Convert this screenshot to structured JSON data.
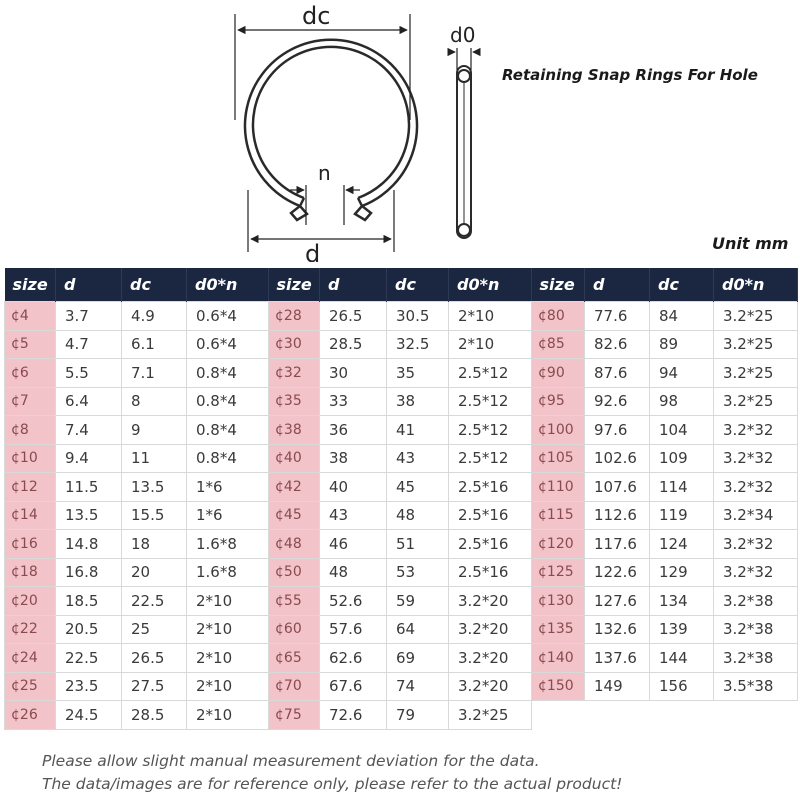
{
  "diagram": {
    "labels": {
      "dc": "dc",
      "n": "n",
      "d": "d",
      "d0": "d0"
    }
  },
  "title": "Retaining Snap Rings For Hole",
  "unit": "Unit mm",
  "headers": [
    "size",
    "d",
    "dc",
    "d0*n"
  ],
  "tables": [
    {
      "rows": [
        [
          "¢4",
          "3.7",
          "4.9",
          "0.6*4"
        ],
        [
          "¢5",
          "4.7",
          "6.1",
          "0.6*4"
        ],
        [
          "¢6",
          "5.5",
          "7.1",
          "0.8*4"
        ],
        [
          "¢7",
          "6.4",
          "8",
          "0.8*4"
        ],
        [
          "¢8",
          "7.4",
          "9",
          "0.8*4"
        ],
        [
          "¢10",
          "9.4",
          "11",
          "0.8*4"
        ],
        [
          "¢12",
          "11.5",
          "13.5",
          "1*6"
        ],
        [
          "¢14",
          "13.5",
          "15.5",
          "1*6"
        ],
        [
          "¢16",
          "14.8",
          "18",
          "1.6*8"
        ],
        [
          "¢18",
          "16.8",
          "20",
          "1.6*8"
        ],
        [
          "¢20",
          "18.5",
          "22.5",
          "2*10"
        ],
        [
          "¢22",
          "20.5",
          "25",
          "2*10"
        ],
        [
          "¢24",
          "22.5",
          "26.5",
          "2*10"
        ],
        [
          "¢25",
          "23.5",
          "27.5",
          "2*10"
        ],
        [
          "¢26",
          "24.5",
          "28.5",
          "2*10"
        ]
      ]
    },
    {
      "rows": [
        [
          "¢28",
          "26.5",
          "30.5",
          "2*10"
        ],
        [
          "¢30",
          "28.5",
          "32.5",
          "2*10"
        ],
        [
          "¢32",
          "30",
          "35",
          "2.5*12"
        ],
        [
          "¢35",
          "33",
          "38",
          "2.5*12"
        ],
        [
          "¢38",
          "36",
          "41",
          "2.5*12"
        ],
        [
          "¢40",
          "38",
          "43",
          "2.5*12"
        ],
        [
          "¢42",
          "40",
          "45",
          "2.5*16"
        ],
        [
          "¢45",
          "43",
          "48",
          "2.5*16"
        ],
        [
          "¢48",
          "46",
          "51",
          "2.5*16"
        ],
        [
          "¢50",
          "48",
          "53",
          "2.5*16"
        ],
        [
          "¢55",
          "52.6",
          "59",
          "3.2*20"
        ],
        [
          "¢60",
          "57.6",
          "64",
          "3.2*20"
        ],
        [
          "¢65",
          "62.6",
          "69",
          "3.2*20"
        ],
        [
          "¢70",
          "67.6",
          "74",
          "3.2*20"
        ],
        [
          "¢75",
          "72.6",
          "79",
          "3.2*25"
        ]
      ]
    },
    {
      "rows": [
        [
          "¢80",
          "77.6",
          "84",
          "3.2*25"
        ],
        [
          "¢85",
          "82.6",
          "89",
          "3.2*25"
        ],
        [
          "¢90",
          "87.6",
          "94",
          "3.2*25"
        ],
        [
          "¢95",
          "92.6",
          "98",
          "3.2*25"
        ],
        [
          "¢100",
          "97.6",
          "104",
          "3.2*32"
        ],
        [
          "¢105",
          "102.6",
          "109",
          "3.2*32"
        ],
        [
          "¢110",
          "107.6",
          "114",
          "3.2*32"
        ],
        [
          "¢115",
          "112.6",
          "119",
          "3.2*34"
        ],
        [
          "¢120",
          "117.6",
          "124",
          "3.2*32"
        ],
        [
          "¢125",
          "122.6",
          "129",
          "3.2*32"
        ],
        [
          "¢130",
          "127.6",
          "134",
          "3.2*38"
        ],
        [
          "¢135",
          "132.6",
          "139",
          "3.2*38"
        ],
        [
          "¢140",
          "137.6",
          "144",
          "3.2*38"
        ],
        [
          "¢150",
          "149",
          "156",
          "3.5*38"
        ]
      ]
    }
  ],
  "notes": [
    "Please allow slight manual measurement deviation for the data.",
    "The data/images are for reference only, please refer to the actual product!"
  ],
  "colors": {
    "header_bg": "#1b2740",
    "size_cell_bg": "#f2c3c8",
    "size_text": "#8a4a4f"
  }
}
